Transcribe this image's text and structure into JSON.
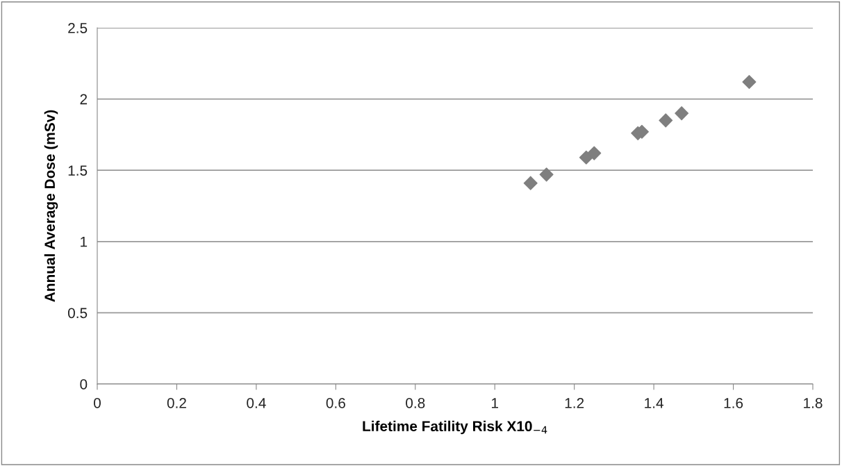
{
  "chart_data": {
    "type": "scatter",
    "xlabel": "Lifetime Fatility Risk X10$_{−4}$",
    "ylabel": "Annual Average Dose (mSv)",
    "x": [
      1.09,
      1.13,
      1.23,
      1.25,
      1.36,
      1.37,
      1.43,
      1.47,
      1.64
    ],
    "series": [
      {
        "color": "#7f7f7f",
        "values": [
          1.41,
          1.47,
          1.59,
          1.62,
          1.76,
          1.77,
          1.85,
          1.9,
          2.12
        ]
      }
    ],
    "xlim": [
      0,
      1.8
    ],
    "xticks": [
      0,
      0.2,
      0.4,
      0.6,
      0.8,
      1,
      1.2,
      1.4,
      1.6,
      1.8
    ],
    "ylim": [
      0,
      2.5
    ],
    "yticks": [
      0,
      0.5,
      1,
      1.5,
      2,
      2.5
    ],
    "grid": "y",
    "marker": "diamond"
  }
}
